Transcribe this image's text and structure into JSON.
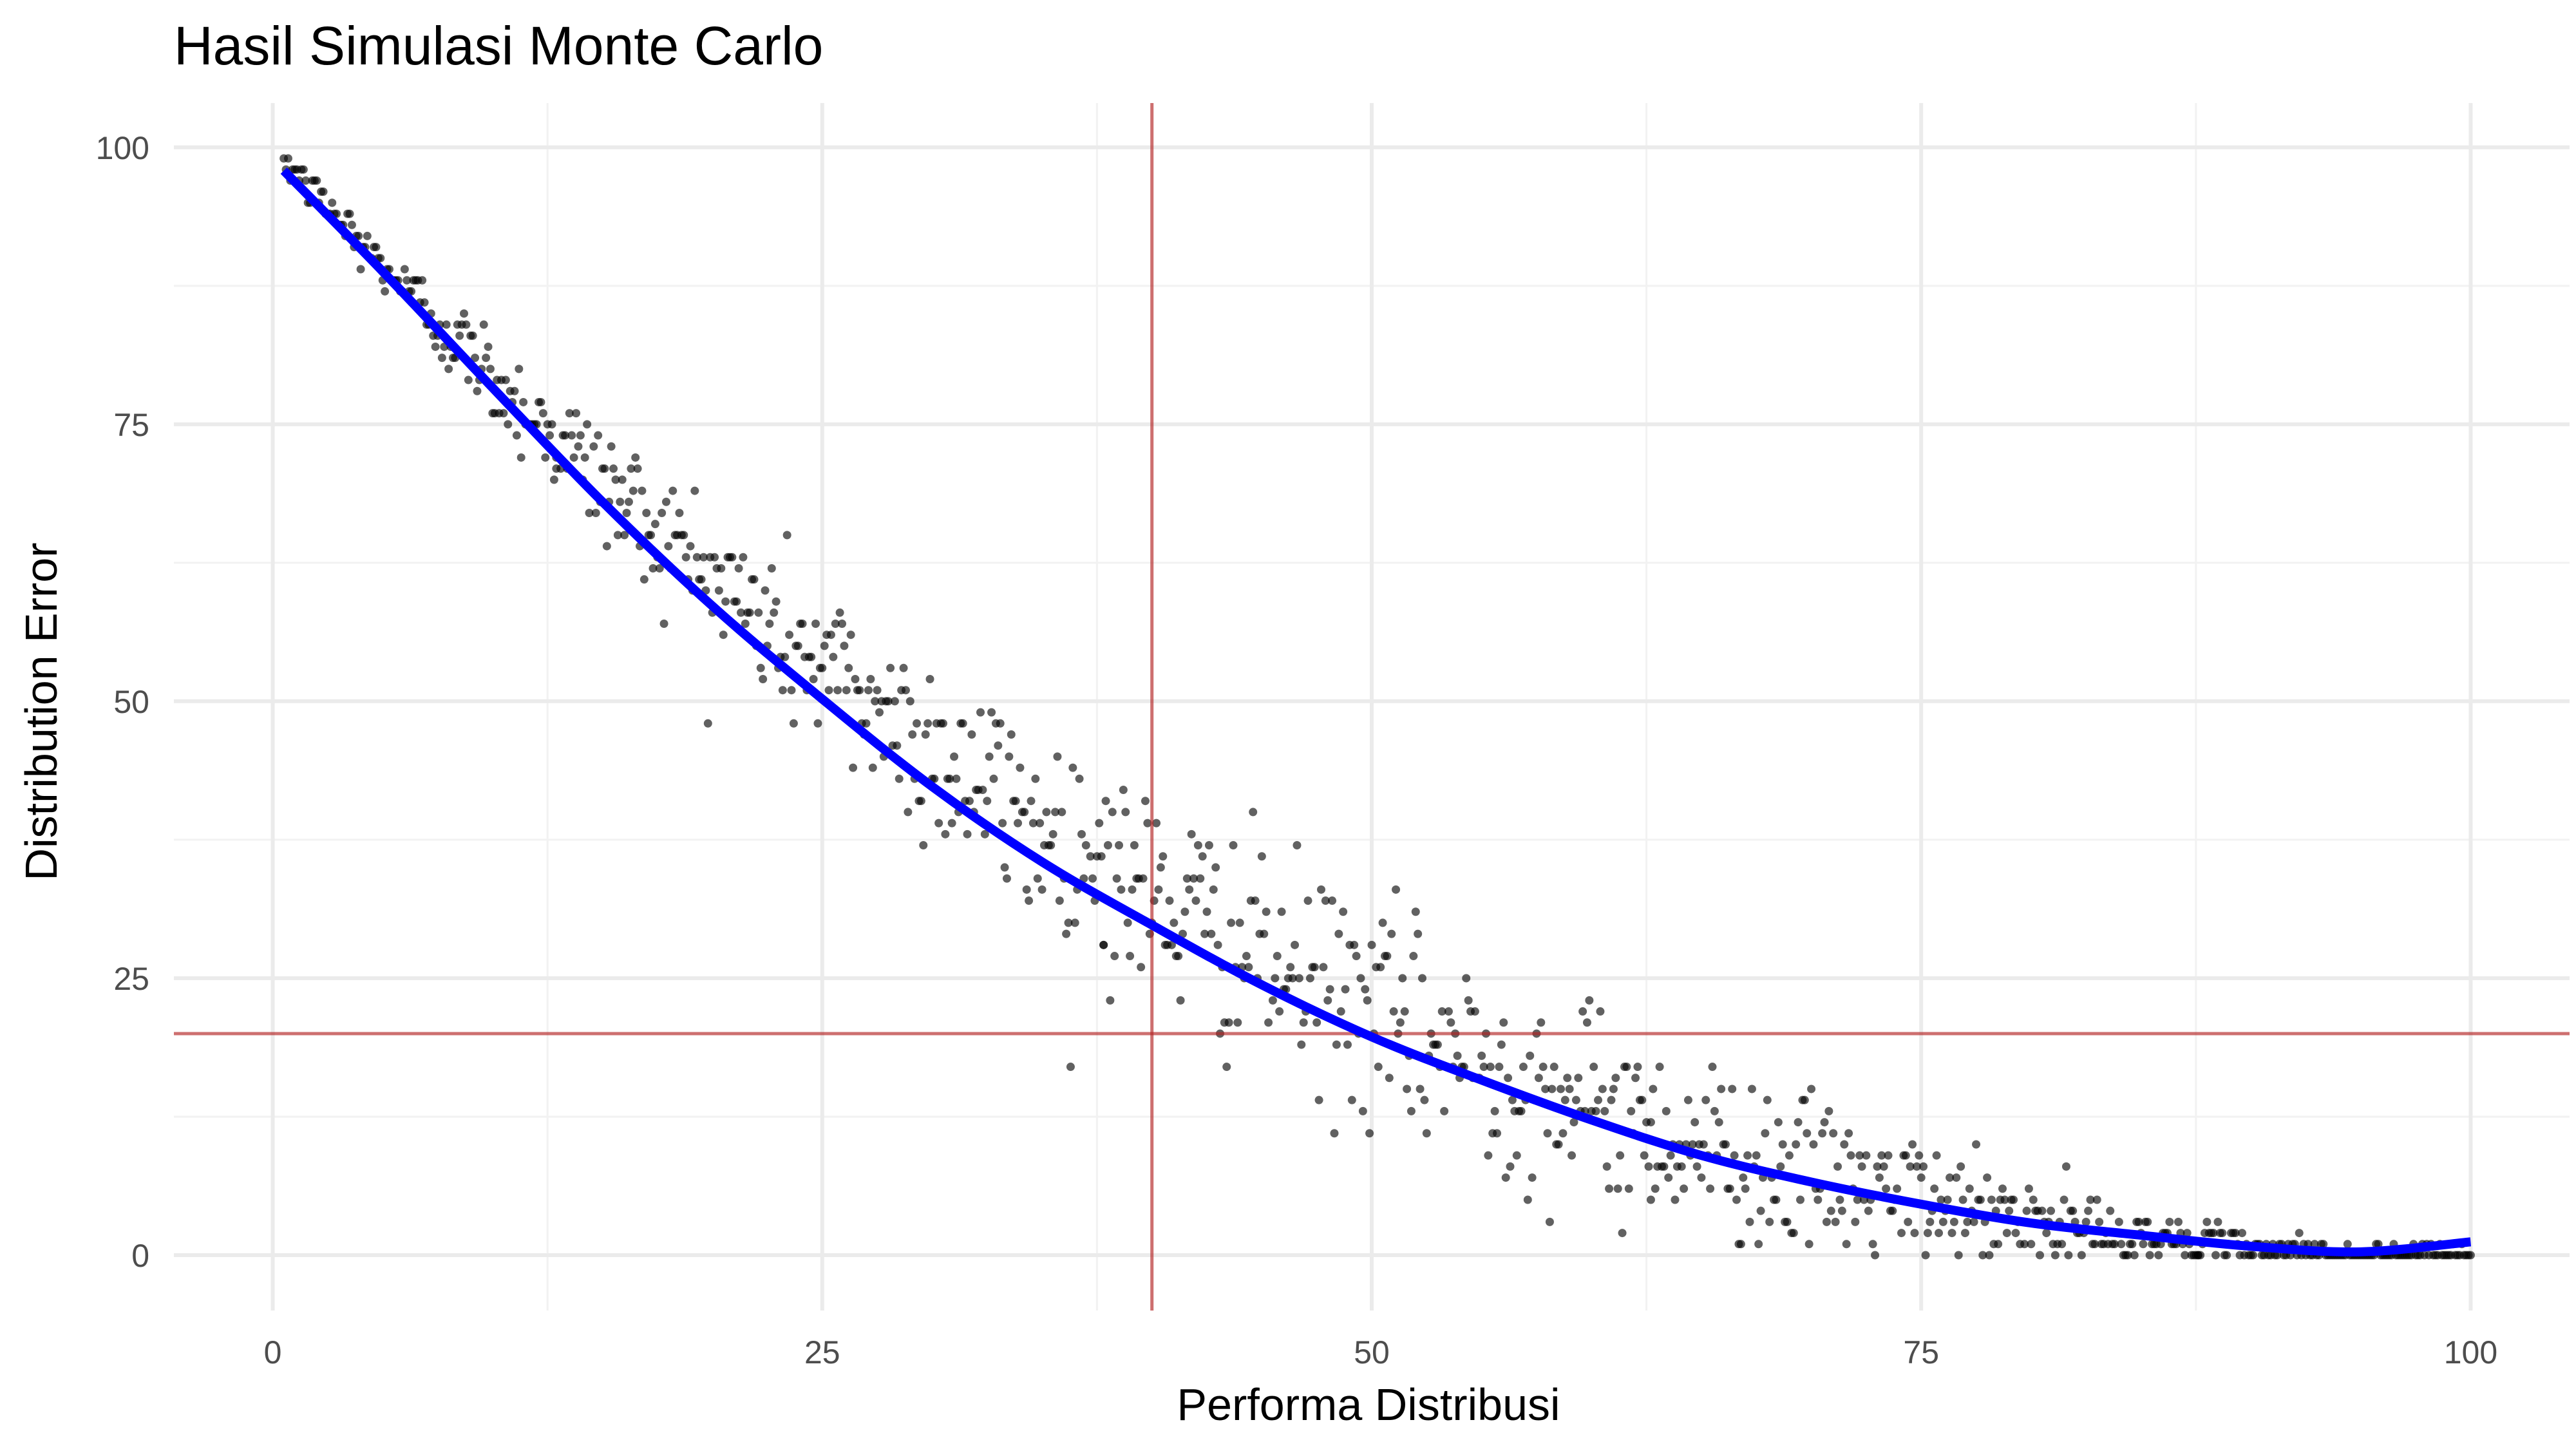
{
  "chart_data": {
    "type": "scatter",
    "title": "Hasil Simulasi Monte Carlo",
    "xlabel": "Performa Distribusi",
    "ylabel": "Distribution Error",
    "xlim": [
      -4.5,
      104.5
    ],
    "ylim": [
      -5,
      104
    ],
    "x_ticks": [
      0,
      25,
      50,
      75,
      100
    ],
    "x_tick_labels": [
      "0",
      "25",
      "50",
      "75",
      "100"
    ],
    "y_ticks": [
      0,
      25,
      50,
      75,
      100
    ],
    "y_tick_labels": [
      "0",
      "25",
      "50",
      "75",
      "100"
    ],
    "grid": true,
    "legend": "none",
    "reference_lines": {
      "vertical_x": 40,
      "horizontal_y": 20,
      "color": "#b22222"
    },
    "points": {
      "color": "#000000",
      "count": 1000,
      "x_range": [
        0.5,
        100
      ],
      "trend_formula": "y = 100 * (1 - x/100)^2.2",
      "noise_sd_max": 4.5
    },
    "series": [
      {
        "type": "smooth-line",
        "color": "#0000ff",
        "x": [
          0.5,
          5,
          10,
          15,
          20,
          25,
          30,
          35,
          40,
          45,
          50,
          55,
          60,
          65,
          70,
          75,
          80,
          85,
          90,
          95,
          100
        ],
        "y": [
          97.9,
          88.8,
          78.3,
          68.0,
          58.6,
          50.2,
          42.3,
          35.5,
          29.8,
          24.4,
          19.7,
          15.8,
          12.2,
          9.0,
          6.6,
          4.6,
          2.9,
          1.8,
          0.8,
          0.3,
          1.2
        ]
      }
    ]
  }
}
